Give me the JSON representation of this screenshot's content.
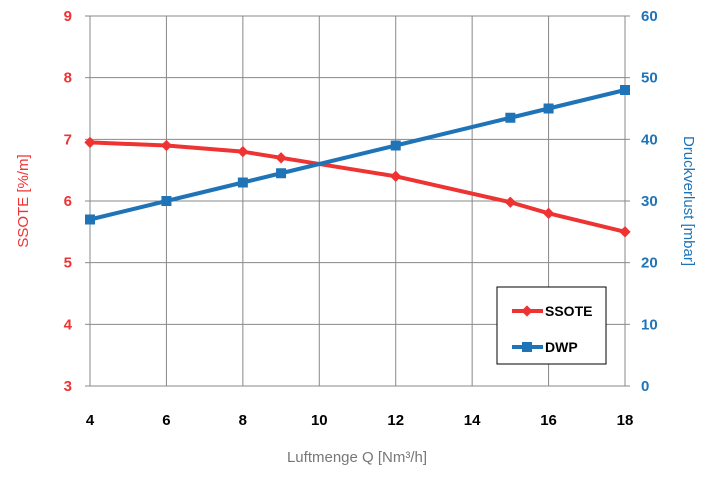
{
  "chart_data": {
    "type": "line",
    "x": [
      4,
      6,
      8,
      9,
      10,
      12,
      15,
      16,
      18
    ],
    "xticks": [
      "4",
      "6",
      "8",
      "10",
      "12",
      "14",
      "16",
      "18"
    ],
    "xlim": [
      4,
      18
    ],
    "xlabel": "Luftmenge Q [Nm³/h]",
    "ylabel_left": "SSOTE [%/m]",
    "ylabel_right": "Druckverlust [mbar]",
    "ylim_left": [
      3,
      9
    ],
    "ylim_right": [
      0,
      60
    ],
    "yticks_left": [
      "3",
      "4",
      "5",
      "6",
      "7",
      "8",
      "9"
    ],
    "yticks_right": [
      "0",
      "10",
      "20",
      "30",
      "40",
      "50",
      "60"
    ],
    "grid": true,
    "legend_position": "lower-right",
    "series": [
      {
        "name": "SSOTE",
        "axis": "left",
        "color": "#ee3333",
        "marker": "diamond",
        "x": [
          4,
          6,
          8,
          9,
          12,
          15,
          16,
          18
        ],
        "values": [
          6.95,
          6.9,
          6.8,
          6.7,
          6.4,
          5.98,
          5.8,
          5.5
        ]
      },
      {
        "name": "DWP",
        "axis": "right",
        "color": "#1f74b8",
        "marker": "square",
        "x": [
          4,
          6,
          8,
          9,
          12,
          15,
          16,
          18
        ],
        "values": [
          27,
          30,
          33,
          34.5,
          39,
          43.5,
          45,
          48
        ]
      }
    ]
  }
}
